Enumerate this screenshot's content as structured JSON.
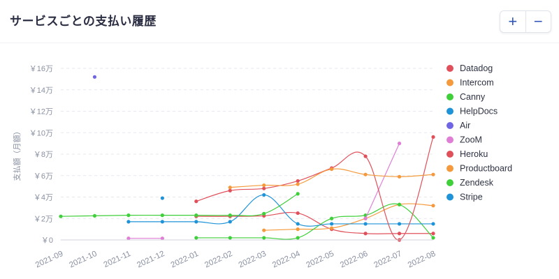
{
  "header": {
    "title": "サービスごとの支払い履歴"
  },
  "controls": {
    "zoom_in": "+",
    "zoom_in_icon": "plus-icon",
    "zoom_out": "−",
    "zoom_out_icon": "minus-icon"
  },
  "colors": {
    "accent": "#2f54b9",
    "axis_text": "#8a90a2",
    "grid": "#e6e8ee"
  },
  "chart_data": {
    "type": "line",
    "title": "サービスごとの支払い履歴",
    "xlabel": "",
    "ylabel": "支払額（月額）",
    "categories": [
      "2021-09",
      "2021-10",
      "2021-11",
      "2021-12",
      "2022-01",
      "2022-02",
      "2022-03",
      "2022-04",
      "2022-05",
      "2022-06",
      "2022-07",
      "2022-08"
    ],
    "ylim": [
      0,
      160000
    ],
    "yticks": [
      {
        "value": 0,
        "label": "￥0"
      },
      {
        "value": 20000,
        "label": "￥2万"
      },
      {
        "value": 40000,
        "label": "￥4万"
      },
      {
        "value": 60000,
        "label": "￥6万"
      },
      {
        "value": 80000,
        "label": "￥8万"
      },
      {
        "value": 100000,
        "label": "￥10万"
      },
      {
        "value": 120000,
        "label": "￥12万"
      },
      {
        "value": 140000,
        "label": "￥14万"
      },
      {
        "value": 160000,
        "label": "￥16万"
      }
    ],
    "grid": true,
    "legend_position": "right",
    "series": [
      {
        "name": "Datadog",
        "color": "#e0505b",
        "values": [
          null,
          null,
          null,
          null,
          22000,
          22000,
          22500,
          25000,
          10000,
          6000,
          6000,
          6000
        ]
      },
      {
        "name": "Intercom",
        "color": "#f59a3c",
        "values": [
          null,
          null,
          null,
          null,
          null,
          null,
          9000,
          10000,
          11000,
          20000,
          33000,
          32000
        ]
      },
      {
        "name": "Canny",
        "color": "#3fcf3a",
        "values": [
          null,
          null,
          null,
          null,
          2000,
          2000,
          2000,
          2000,
          20000,
          23000,
          33000,
          2000
        ]
      },
      {
        "name": "HelpDocs",
        "color": "#1e93d8",
        "values": [
          null,
          null,
          17000,
          17000,
          17000,
          17000,
          42000,
          15000,
          15000,
          15000,
          15000,
          15000
        ]
      },
      {
        "name": "Air",
        "color": "#7065e2",
        "values": [
          null,
          152000,
          null,
          null,
          null,
          null,
          null,
          null,
          null,
          null,
          null,
          null
        ]
      },
      {
        "name": "ZooM",
        "color": "#e07ed6",
        "values": [
          null,
          null,
          1500,
          1500,
          null,
          null,
          null,
          null,
          null,
          20000,
          90000,
          null
        ]
      },
      {
        "name": "Heroku",
        "color": "#e0505b",
        "values": [
          null,
          null,
          null,
          null,
          36000,
          46000,
          48000,
          55000,
          67000,
          78000,
          0,
          96000
        ]
      },
      {
        "name": "Productboard",
        "color": "#f59a3c",
        "values": [
          null,
          null,
          null,
          null,
          null,
          49000,
          51000,
          52000,
          66000,
          61000,
          59000,
          61000
        ]
      },
      {
        "name": "Zendesk",
        "color": "#3fcf3a",
        "values": [
          22000,
          22500,
          23000,
          23000,
          23000,
          23000,
          24500,
          43000,
          null,
          null,
          null,
          null
        ]
      },
      {
        "name": "Stripe",
        "color": "#1e93d8",
        "values": [
          null,
          null,
          null,
          39000,
          null,
          null,
          null,
          null,
          null,
          null,
          null,
          null
        ]
      }
    ]
  }
}
